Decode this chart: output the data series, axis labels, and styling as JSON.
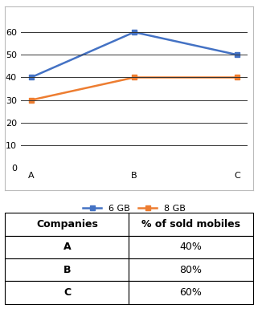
{
  "categories": [
    "A",
    "B",
    "C"
  ],
  "series_6gb": [
    40,
    60,
    50
  ],
  "series_8gb": [
    30,
    40,
    40
  ],
  "series_6gb_color": "#4472C4",
  "series_8gb_color": "#ED7D31",
  "legend_6gb": "6 GB",
  "legend_8gb": "8 GB",
  "ylim": [
    0,
    70
  ],
  "yticks": [
    0,
    10,
    20,
    30,
    40,
    50,
    60
  ],
  "chart_bg": "#FFFFFF",
  "table_headers": [
    "Companies",
    "% of sold mobiles"
  ],
  "table_rows": [
    [
      "A",
      "40%"
    ],
    [
      "B",
      "80%"
    ],
    [
      "C",
      "60%"
    ]
  ],
  "marker_style": "s",
  "marker_size": 5,
  "line_width": 1.8,
  "grid_color": "#333333",
  "grid_linewidth": 0.7,
  "border_color": "#BBBBBB",
  "font_size_axis": 8,
  "font_size_legend": 8,
  "font_size_table": 9
}
